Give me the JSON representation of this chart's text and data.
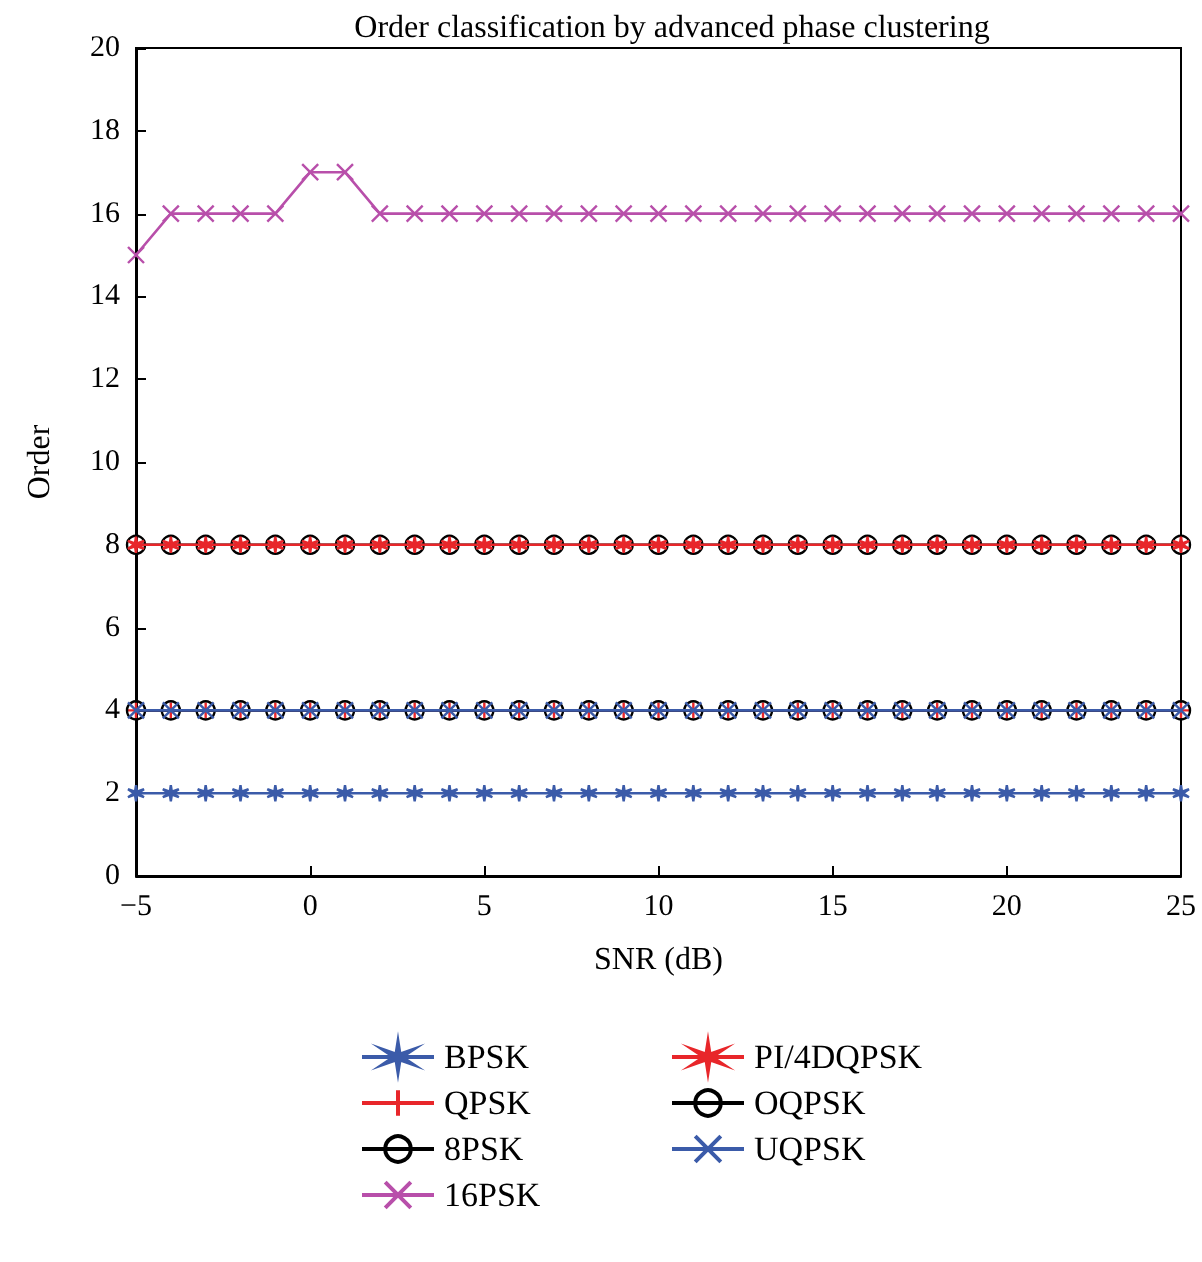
{
  "chart_data": {
    "type": "line",
    "title": "Order classification by advanced phase clustering",
    "xlabel": "SNR (dB)",
    "ylabel": "Order",
    "x": [
      -5,
      -4,
      -3,
      -2,
      -1,
      0,
      1,
      2,
      3,
      4,
      5,
      6,
      7,
      8,
      9,
      10,
      11,
      12,
      13,
      14,
      15,
      16,
      17,
      18,
      19,
      20,
      21,
      22,
      23,
      24,
      25
    ],
    "xlim": [
      -5,
      25
    ],
    "xticks": [
      -5,
      0,
      5,
      10,
      15,
      20,
      25
    ],
    "ylim": [
      0,
      20
    ],
    "yticks": [
      0,
      2,
      4,
      6,
      8,
      10,
      12,
      14,
      16,
      18,
      20
    ],
    "grid": false,
    "legend": "bottom",
    "series": [
      {
        "name": "BPSK",
        "color": "#3b5ba9",
        "marker": "cross",
        "values": [
          2,
          2,
          2,
          2,
          2,
          2,
          2,
          2,
          2,
          2,
          2,
          2,
          2,
          2,
          2,
          2,
          2,
          2,
          2,
          2,
          2,
          2,
          2,
          2,
          2,
          2,
          2,
          2,
          2,
          2,
          2
        ]
      },
      {
        "name": "QPSK",
        "color": "#e8262a",
        "marker": "plus",
        "values": [
          4,
          4,
          4,
          4,
          4,
          4,
          4,
          4,
          4,
          4,
          4,
          4,
          4,
          4,
          4,
          4,
          4,
          4,
          4,
          4,
          4,
          4,
          4,
          4,
          4,
          4,
          4,
          4,
          4,
          4,
          4
        ]
      },
      {
        "name": "8PSK",
        "color": "#000000",
        "marker": "circle",
        "values": [
          8,
          8,
          8,
          8,
          8,
          8,
          8,
          8,
          8,
          8,
          8,
          8,
          8,
          8,
          8,
          8,
          8,
          8,
          8,
          8,
          8,
          8,
          8,
          8,
          8,
          8,
          8,
          8,
          8,
          8,
          8
        ]
      },
      {
        "name": "16PSK",
        "color": "#b84faa",
        "marker": "x",
        "values": [
          15,
          16,
          16,
          16,
          16,
          17,
          17,
          16,
          16,
          16,
          16,
          16,
          16,
          16,
          16,
          16,
          16,
          16,
          16,
          16,
          16,
          16,
          16,
          16,
          16,
          16,
          16,
          16,
          16,
          16,
          16
        ]
      },
      {
        "name": "PI/4DQPSK",
        "color": "#e8262a",
        "marker": "cross",
        "values": [
          8,
          8,
          8,
          8,
          8,
          8,
          8,
          8,
          8,
          8,
          8,
          8,
          8,
          8,
          8,
          8,
          8,
          8,
          8,
          8,
          8,
          8,
          8,
          8,
          8,
          8,
          8,
          8,
          8,
          8,
          8
        ]
      },
      {
        "name": "OQPSK",
        "color": "#000000",
        "marker": "circle",
        "values": [
          4,
          4,
          4,
          4,
          4,
          4,
          4,
          4,
          4,
          4,
          4,
          4,
          4,
          4,
          4,
          4,
          4,
          4,
          4,
          4,
          4,
          4,
          4,
          4,
          4,
          4,
          4,
          4,
          4,
          4,
          4
        ]
      },
      {
        "name": "UQPSK",
        "color": "#3b5ba9",
        "marker": "x",
        "values": [
          4,
          4,
          4,
          4,
          4,
          4,
          4,
          4,
          4,
          4,
          4,
          4,
          4,
          4,
          4,
          4,
          4,
          4,
          4,
          4,
          4,
          4,
          4,
          4,
          4,
          4,
          4,
          4,
          4,
          4,
          4
        ]
      }
    ]
  }
}
